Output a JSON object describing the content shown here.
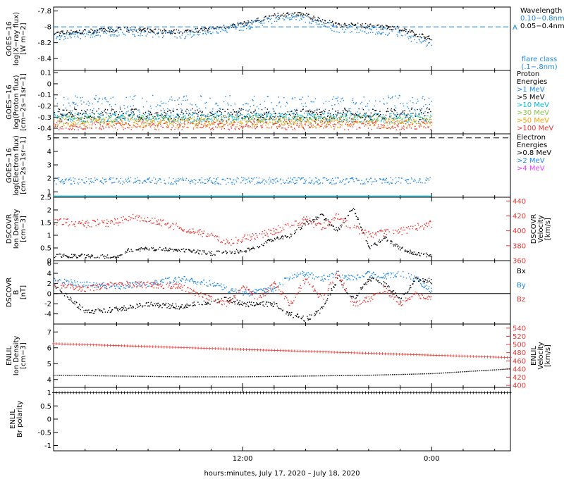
{
  "xaxis": {
    "label": "hours:minutes, July 17, 2020 – July 18, 2020",
    "range": [
      0,
      29
    ],
    "ticks": [
      {
        "v": 12,
        "label": "12:00"
      },
      {
        "v": 24,
        "label": "0:00"
      }
    ],
    "minor_step": 2
  },
  "colors": {
    "black": "#000000",
    "blue": "#1e88e5",
    "cyan": "#00bcd4",
    "green": "#8bc34a",
    "orange": "#ffa000",
    "red": "#e53935",
    "magenta": "#e040fb"
  },
  "chart_data": [
    {
      "type": "scatter",
      "ylabel": [
        "GOES−16",
        "log(X−ray flux)",
        "[W m−2]"
      ],
      "ylim": [
        -8.55,
        -7.75
      ],
      "yticks": [
        -7.8,
        -8.0,
        -8.2,
        -8.4
      ],
      "legend": {
        "title": "Wavelength",
        "entries": [
          {
            "label": "0.10−0.8nm",
            "color": "#1e88e5"
          },
          {
            "label": "0.05−0.4nm",
            "color": "#000000"
          }
        ],
        "note": [
          "flare class",
          "(.1−.8nm)"
        ]
      },
      "flare_marker": {
        "label": "A",
        "y": -8.0
      },
      "series": [
        {
          "color": "#000000",
          "x": [
            0,
            2,
            4,
            6,
            8,
            10,
            12,
            14,
            15,
            16,
            18,
            20,
            22,
            24
          ],
          "y": [
            -8.08,
            -8.05,
            -8.03,
            -8.04,
            -8.06,
            -8.02,
            -7.96,
            -7.86,
            -7.83,
            -7.85,
            -7.97,
            -7.98,
            -8.02,
            -8.15
          ],
          "jit": 0.03
        },
        {
          "color": "#1e88e5",
          "x": [
            0,
            2,
            4,
            6,
            8,
            10,
            12,
            14,
            15,
            16,
            18,
            20,
            22,
            24
          ],
          "y": [
            -8.12,
            -8.09,
            -8.06,
            -8.08,
            -8.1,
            -8.05,
            -7.99,
            -7.9,
            -7.87,
            -7.9,
            -8.02,
            -8.03,
            -8.08,
            -8.22
          ],
          "jit": 0.05
        }
      ]
    },
    {
      "type": "scatter",
      "ylabel": [
        "GOES−16",
        "log(Proton flux)",
        "[cm−2s−1sr−1]"
      ],
      "ylim": [
        -0.45,
        0.12
      ],
      "yticks": [
        0.1,
        0.0,
        -0.1,
        -0.2,
        -0.3,
        -0.4
      ],
      "legend": {
        "title": [
          "Proton",
          "Energies"
        ],
        "entries": [
          {
            "label": ">1 MeV",
            "color": "#1e88e5"
          },
          {
            "label": ">5 MeV",
            "color": "#000000"
          },
          {
            "label": ">10 MeV",
            "color": "#00bcd4"
          },
          {
            "label": ">30 MeV",
            "color": "#8bc34a"
          },
          {
            "label": ">50 MeV",
            "color": "#ffa000"
          },
          {
            "label": ">100 MeV",
            "color": "#e53935"
          }
        ]
      },
      "series": [
        {
          "color": "#1e88e5",
          "x": [
            0,
            24
          ],
          "y": [
            -0.22,
            -0.22
          ],
          "jit": 0.12
        },
        {
          "color": "#000000",
          "x": [
            0,
            24
          ],
          "y": [
            -0.27,
            -0.27
          ],
          "jit": 0.05
        },
        {
          "color": "#00bcd4",
          "x": [
            0,
            24
          ],
          "y": [
            -0.3,
            -0.3
          ],
          "jit": 0.04
        },
        {
          "color": "#8bc34a",
          "x": [
            0,
            24
          ],
          "y": [
            -0.32,
            -0.32
          ],
          "jit": 0.04
        },
        {
          "color": "#ffa000",
          "x": [
            0,
            24
          ],
          "y": [
            -0.35,
            -0.35
          ],
          "jit": 0.04
        },
        {
          "color": "#e53935",
          "x": [
            0,
            24
          ],
          "y": [
            -0.37,
            -0.37
          ],
          "jit": 0.04
        }
      ]
    },
    {
      "type": "scatter",
      "ylabel": [
        "GOES−16",
        "log(Electron flux)",
        "[cm−2s−1sr−1]"
      ],
      "ylim": [
        0.6,
        5.3
      ],
      "yticks": [
        5,
        4,
        3,
        2,
        1
      ],
      "legend": {
        "title": [
          "Electron",
          "Energies"
        ],
        "entries": [
          {
            "label": ">0.8 MeV",
            "color": "#000000"
          },
          {
            "label": ">2 MeV",
            "color": "#1e88e5"
          },
          {
            "label": ">4 MeV",
            "color": "#e040fb"
          }
        ]
      },
      "threshold": 5.0,
      "series": [
        {
          "color": "#1e88e5",
          "x": [
            0,
            24
          ],
          "y": [
            1.85,
            1.85
          ],
          "jit": 0.25
        },
        {
          "color": "#00bcd4",
          "x": [
            0,
            24
          ],
          "y": [
            0.72,
            0.72
          ],
          "jit": 0.0
        }
      ]
    },
    {
      "type": "scatter",
      "ylabel": [
        "DSCOVR",
        "Ion Density",
        "[cm−3]"
      ],
      "ylim": [
        0,
        2.5
      ],
      "yticks": [
        0.0,
        0.5,
        1.0,
        1.5,
        2.0,
        2.5
      ],
      "y2label": [
        "DSCOVR",
        "Velocity",
        "[km/s]"
      ],
      "y2lim": [
        360,
        445
      ],
      "y2ticks": [
        360,
        380,
        400,
        420,
        440
      ],
      "series": [
        {
          "color": "#000000",
          "axis": 1,
          "x": [
            0,
            2,
            4,
            4.5,
            6,
            8,
            10,
            12,
            13,
            14,
            15,
            16,
            17,
            18,
            19,
            20,
            21,
            22,
            23,
            24
          ],
          "y": [
            0.2,
            0.2,
            0.15,
            0.4,
            0.5,
            0.45,
            0.3,
            0.4,
            0.6,
            0.9,
            1.0,
            1.5,
            1.8,
            1.2,
            2.1,
            0.5,
            0.9,
            0.5,
            0.3,
            0.2
          ],
          "jit": 0.08
        },
        {
          "color": "#e53935",
          "axis": 2,
          "x": [
            0,
            2,
            4,
            5,
            6,
            8,
            10,
            11,
            12,
            14,
            15,
            16,
            17,
            18,
            19,
            20,
            21,
            22,
            24
          ],
          "y": [
            413,
            410,
            412,
            418,
            415,
            405,
            395,
            385,
            390,
            400,
            410,
            415,
            405,
            420,
            405,
            395,
            398,
            400,
            410
          ],
          "jit": 5
        }
      ]
    },
    {
      "type": "scatter",
      "ylabel": [
        "DSCOVR",
        "B",
        "[nT]"
      ],
      "ylim": [
        -6,
        6.5
      ],
      "yticks": [
        6,
        4,
        2,
        0,
        -2,
        -4
      ],
      "zero_line": true,
      "legend": {
        "entries": [
          {
            "label": "Bx",
            "color": "#000000"
          },
          {
            "label": "By",
            "color": "#1e88e5"
          },
          {
            "label": "Bz",
            "color": "#e53935"
          }
        ]
      },
      "series": [
        {
          "color": "#000000",
          "x": [
            0,
            1,
            2,
            4,
            6,
            8,
            10,
            11,
            12,
            14,
            15,
            16,
            17,
            18,
            19,
            20,
            21,
            22,
            23,
            24
          ],
          "y": [
            2,
            -1,
            -3.5,
            -3,
            -2,
            -2.5,
            -1.5,
            -1,
            -2,
            -2,
            -4,
            -5,
            -3,
            3,
            -1,
            3,
            2,
            -1,
            3,
            2.5
          ],
          "jit": 0.5
        },
        {
          "color": "#1e88e5",
          "x": [
            0,
            2,
            4,
            6,
            8,
            10,
            11,
            12,
            14,
            15,
            16,
            17,
            18,
            19,
            20,
            21,
            22,
            23,
            24
          ],
          "y": [
            2.5,
            2,
            1.5,
            2,
            3,
            2,
            1,
            0,
            1,
            3.5,
            4,
            3,
            4,
            3,
            4,
            3.5,
            4,
            3,
            0.5
          ],
          "jit": 0.6
        },
        {
          "color": "#e53935",
          "x": [
            0,
            2,
            4,
            6,
            8,
            10,
            11,
            12,
            13,
            14,
            15,
            16,
            17,
            18,
            19,
            20,
            21,
            22,
            23,
            24
          ],
          "y": [
            2,
            1,
            2,
            1.8,
            1.5,
            -1,
            -2,
            1.5,
            -1,
            2,
            -2,
            3,
            -1,
            4,
            -2,
            -1,
            1,
            -2,
            0,
            -1
          ],
          "jit": 0.6
        }
      ]
    },
    {
      "type": "scatter",
      "ylabel": [
        "ENLIL",
        "Ion Density",
        "[cm−3]"
      ],
      "ylim": [
        3.5,
        7.5
      ],
      "yticks": [
        4,
        5,
        6,
        7
      ],
      "y2label": [
        "ENLIL",
        "Velocity",
        "[km/s]"
      ],
      "y2lim": [
        395,
        550
      ],
      "y2ticks": [
        400,
        420,
        440,
        460,
        480,
        500,
        520,
        540
      ],
      "series": [
        {
          "color": "#000000",
          "axis": 1,
          "x": [
            0,
            4,
            8,
            12,
            16,
            20,
            24,
            29
          ],
          "y": [
            4.3,
            4.25,
            4.2,
            4.2,
            4.25,
            4.3,
            4.4,
            4.7
          ],
          "jit": 0,
          "style": "dots"
        },
        {
          "color": "#e53935",
          "axis": 2,
          "x": [
            0,
            29
          ],
          "y": [
            502,
            468
          ],
          "jit": 0,
          "style": "plus"
        }
      ]
    },
    {
      "type": "scatter",
      "ylabel": [
        "ENLIL",
        "Br polarity"
      ],
      "ylim": [
        -1.2,
        1.2
      ],
      "yticks": [
        1.0,
        0.5,
        0.0,
        -0.5,
        -1.0
      ],
      "series": [
        {
          "color": "#000000",
          "x": [
            0,
            29
          ],
          "y": [
            1,
            1
          ],
          "jit": 0,
          "style": "plus"
        }
      ]
    }
  ]
}
